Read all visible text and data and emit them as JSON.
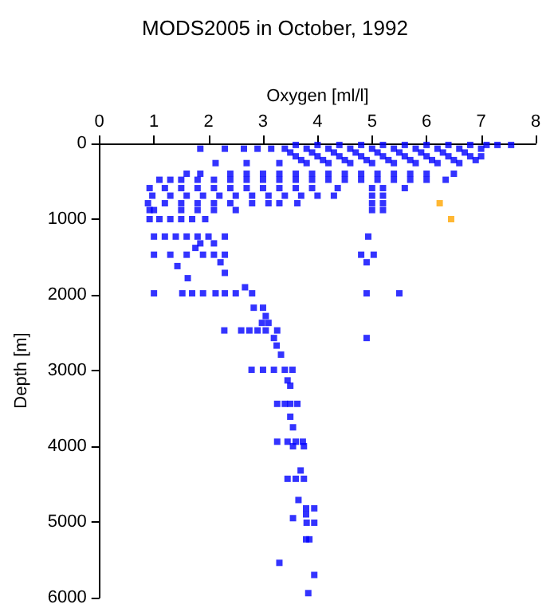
{
  "chart_data": {
    "type": "scatter",
    "title": "MODS2005 in October, 1992",
    "xlabel": "Oxygen [ml/l]",
    "ylabel": "Depth [m]",
    "xlim": [
      0,
      8
    ],
    "xticks": [
      0,
      1,
      2,
      3,
      4,
      5,
      6,
      7,
      8
    ],
    "ylim": [
      6000,
      0
    ],
    "yticks": [
      0,
      1000,
      2000,
      3000,
      4000,
      5000,
      6000
    ],
    "grid": false,
    "marker": "square",
    "series": [
      {
        "color": "#0000ff",
        "x": [
          3.6,
          4.0,
          4.4,
          4.8,
          5.2,
          5.6,
          6.0,
          6.4,
          6.8,
          7.1,
          7.3,
          7.55,
          1.85,
          2.3,
          2.65,
          2.9,
          3.15,
          3.4,
          3.8,
          4.2,
          4.6,
          5.0,
          5.4,
          5.8,
          6.2,
          6.6,
          7.0,
          3.5,
          3.9,
          4.3,
          4.7,
          5.1,
          5.5,
          5.9,
          6.3,
          6.7,
          3.6,
          4.0,
          4.4,
          4.8,
          5.2,
          5.6,
          6.0,
          6.4,
          6.8,
          7.0,
          3.7,
          4.1,
          4.5,
          4.9,
          5.3,
          5.7,
          6.1,
          6.5,
          6.9,
          2.13,
          2.7,
          3.3,
          3.8,
          4.2,
          4.6,
          5.0,
          5.4,
          5.8,
          6.2,
          6.6,
          1.6,
          1.85,
          2.4,
          2.7,
          3.0,
          3.3,
          3.6,
          3.9,
          4.2,
          4.5,
          4.8,
          5.1,
          5.4,
          5.7,
          6.0,
          6.5,
          1.1,
          1.3,
          1.5,
          1.8,
          2.1,
          2.4,
          2.7,
          3.0,
          3.3,
          3.6,
          3.9,
          4.2,
          4.5,
          4.8,
          5.1,
          5.4,
          5.7,
          6.0,
          6.35,
          0.92,
          1.2,
          1.5,
          1.8,
          2.1,
          2.4,
          2.7,
          3.0,
          3.3,
          3.6,
          3.9,
          4.37,
          5.0,
          5.2,
          5.6,
          0.97,
          1.3,
          1.6,
          1.9,
          2.2,
          2.5,
          2.8,
          3.1,
          3.4,
          3.7,
          4.0,
          4.3,
          5.0,
          5.2,
          0.89,
          1.2,
          1.5,
          1.8,
          2.1,
          2.4,
          2.8,
          3.1,
          3.3,
          3.63,
          5.0,
          5.2,
          0.92,
          1.0,
          1.5,
          1.8,
          2.1,
          2.5,
          5.0,
          5.2,
          0.92,
          1.1,
          1.3,
          1.5,
          1.7,
          1.94,
          1.0,
          1.2,
          1.4,
          1.6,
          1.8,
          2.0,
          2.3,
          4.93,
          1.85,
          2.1,
          1.76,
          1.0,
          1.3,
          1.6,
          1.9,
          2.1,
          2.3,
          4.8,
          5.03,
          2.22,
          4.9,
          1.43,
          2.3,
          1.62,
          2.67,
          1.0,
          1.52,
          1.7,
          1.9,
          2.13,
          2.3,
          2.5,
          2.8,
          4.9,
          5.5,
          2.83,
          3.0,
          3.05,
          2.98,
          3.1,
          2.29,
          2.6,
          2.75,
          2.9,
          3.05,
          3.26,
          3.2,
          4.9,
          3.25,
          3.33,
          2.79,
          3.0,
          3.2,
          3.4,
          3.54,
          3.45,
          3.5,
          3.26,
          3.4,
          3.5,
          3.63,
          3.5,
          3.55,
          3.26,
          3.45,
          3.6,
          3.73,
          3.55,
          3.75,
          3.69,
          3.45,
          3.6,
          3.75,
          3.65,
          3.79,
          3.94,
          3.79,
          3.55,
          3.8,
          3.94,
          3.79,
          3.85,
          3.3,
          3.94,
          3.83
        ],
        "values": [
          20,
          20,
          20,
          20,
          20,
          20,
          20,
          20,
          20,
          20,
          20,
          20,
          70,
          70,
          70,
          70,
          70,
          70,
          70,
          70,
          70,
          70,
          70,
          70,
          70,
          70,
          70,
          120,
          120,
          120,
          120,
          120,
          120,
          120,
          120,
          120,
          170,
          170,
          170,
          170,
          170,
          170,
          170,
          170,
          170,
          170,
          220,
          220,
          220,
          220,
          220,
          220,
          220,
          220,
          220,
          260,
          260,
          260,
          260,
          260,
          260,
          260,
          260,
          260,
          260,
          260,
          400,
          400,
          400,
          400,
          400,
          400,
          400,
          400,
          400,
          400,
          400,
          400,
          400,
          400,
          400,
          400,
          480,
          480,
          480,
          480,
          480,
          480,
          480,
          480,
          480,
          480,
          480,
          480,
          480,
          480,
          480,
          480,
          480,
          480,
          480,
          590,
          590,
          590,
          590,
          590,
          590,
          590,
          590,
          590,
          590,
          590,
          590,
          590,
          590,
          590,
          690,
          690,
          690,
          690,
          690,
          690,
          690,
          690,
          690,
          690,
          690,
          690,
          690,
          690,
          790,
          790,
          790,
          790,
          790,
          790,
          790,
          790,
          790,
          790,
          790,
          790,
          880,
          880,
          880,
          880,
          880,
          880,
          880,
          880,
          1000,
          1000,
          1000,
          1000,
          1000,
          1000,
          1230,
          1230,
          1230,
          1230,
          1230,
          1230,
          1230,
          1230,
          1320,
          1320,
          1380,
          1470,
          1470,
          1470,
          1470,
          1470,
          1470,
          1470,
          1470,
          1570,
          1570,
          1620,
          1710,
          1780,
          1900,
          1980,
          1980,
          1980,
          1980,
          1980,
          1980,
          1980,
          1980,
          1980,
          1980,
          2170,
          2170,
          2280,
          2370,
          2370,
          2470,
          2470,
          2470,
          2470,
          2470,
          2470,
          2570,
          2570,
          2670,
          2790,
          2990,
          2990,
          2990,
          2990,
          2990,
          3130,
          3200,
          3440,
          3440,
          3440,
          3440,
          3610,
          3750,
          3940,
          3940,
          3940,
          3940,
          4000,
          4000,
          4320,
          4430,
          4430,
          4430,
          4710,
          4820,
          4820,
          4900,
          4950,
          5010,
          5010,
          5230,
          5230,
          5540,
          5700,
          5940
        ]
      },
      {
        "color": "#ffa500",
        "x": [
          6.24,
          6.45
        ],
        "values": [
          790,
          1000
        ]
      }
    ]
  }
}
